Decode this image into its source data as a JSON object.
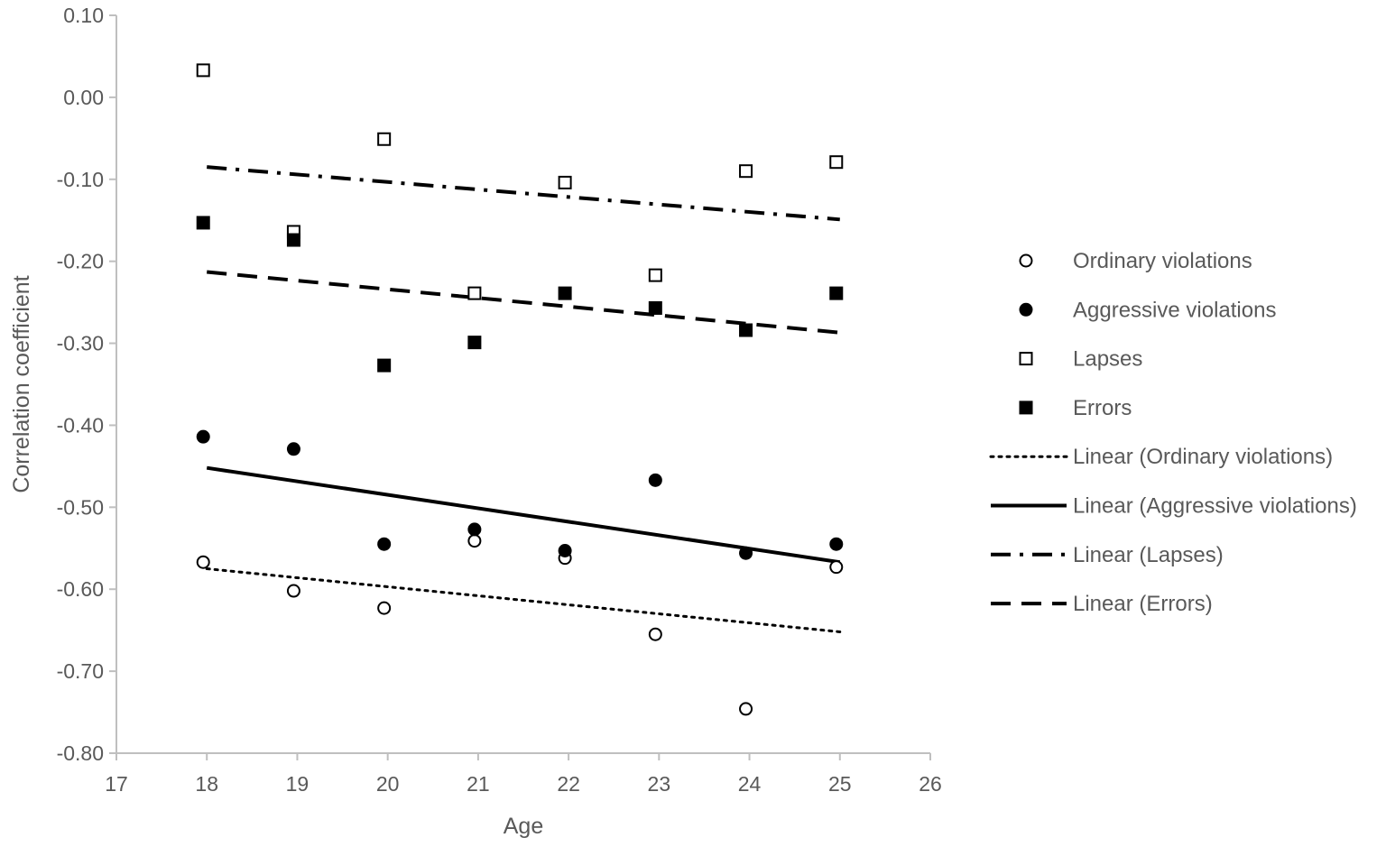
{
  "chart_data": {
    "type": "scatter",
    "title": "",
    "xlabel": "Age",
    "ylabel": "Correlation coefficient",
    "xlim": [
      17,
      26
    ],
    "ylim": [
      -0.8,
      0.1
    ],
    "xticks": [
      "17",
      "18",
      "19",
      "20",
      "21",
      "22",
      "23",
      "24",
      "25",
      "26"
    ],
    "yticks": [
      "0.10",
      "0.00",
      "-0.10",
      "-0.20",
      "-0.30",
      "-0.40",
      "-0.50",
      "-0.60",
      "-0.70",
      "-0.80"
    ],
    "grid": false,
    "legend_position": "right",
    "series": [
      {
        "name": "Ordinary violations",
        "marker": "circle-open",
        "x": [
          18,
          19,
          20,
          21,
          22,
          23,
          24,
          25
        ],
        "y": [
          -0.567,
          -0.602,
          -0.623,
          -0.541,
          -0.562,
          -0.655,
          -0.746,
          -0.573
        ]
      },
      {
        "name": "Aggressive violations",
        "marker": "circle-filled",
        "x": [
          18,
          19,
          20,
          21,
          22,
          23,
          24,
          25
        ],
        "y": [
          -0.414,
          -0.429,
          -0.545,
          -0.527,
          -0.553,
          -0.467,
          -0.556,
          -0.545
        ]
      },
      {
        "name": "Lapses",
        "marker": "square-open",
        "x": [
          18,
          19,
          20,
          21,
          22,
          23,
          24,
          25
        ],
        "y": [
          0.033,
          -0.164,
          -0.051,
          -0.239,
          -0.104,
          -0.217,
          -0.09,
          -0.079
        ]
      },
      {
        "name": "Errors",
        "marker": "square-filled",
        "x": [
          18,
          19,
          20,
          21,
          22,
          23,
          24,
          25
        ],
        "y": [
          -0.153,
          -0.174,
          -0.327,
          -0.299,
          -0.239,
          -0.257,
          -0.284,
          -0.239
        ]
      }
    ],
    "trendlines": [
      {
        "name": "Linear (Ordinary violations)",
        "style": "dotted",
        "x": [
          18,
          25
        ],
        "y": [
          -0.575,
          -0.652
        ]
      },
      {
        "name": "Linear (Aggressive violations)",
        "style": "solid",
        "x": [
          18,
          25
        ],
        "y": [
          -0.452,
          -0.567
        ]
      },
      {
        "name": "Linear (Lapses)",
        "style": "dash-dot",
        "x": [
          18,
          25
        ],
        "y": [
          -0.085,
          -0.149
        ]
      },
      {
        "name": "Linear (Errors)",
        "style": "dashed",
        "x": [
          18,
          25
        ],
        "y": [
          -0.213,
          -0.287
        ]
      }
    ],
    "legend": [
      "Ordinary violations",
      "Aggressive violations",
      "Lapses",
      "Errors",
      "Linear (Ordinary violations)",
      "Linear (Aggressive violations)",
      "Linear (Lapses)",
      "Linear (Errors)"
    ]
  }
}
